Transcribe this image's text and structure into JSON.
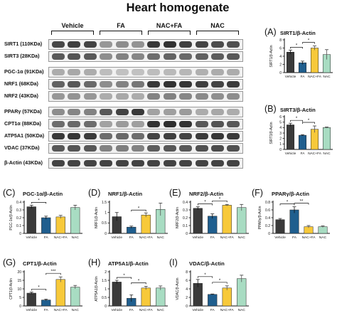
{
  "figure_title": "Heart homogenate",
  "groups": [
    {
      "name": "Vehicle",
      "color": "#3a3a3a"
    },
    {
      "name": "FA",
      "color": "#1f5e8e"
    },
    {
      "name": "NAC+FA",
      "color": "#f7c93a"
    },
    {
      "name": "NAC",
      "color": "#a8dcc2"
    }
  ],
  "blots": [
    {
      "label": "SIRT1 (110KDa)",
      "intensity": [
        0.78,
        0.82,
        0.8,
        0.4,
        0.45,
        0.42,
        0.85,
        0.88,
        0.82,
        0.8,
        0.76,
        0.74
      ]
    },
    {
      "label": "SIRT3 (28KDa)",
      "intensity": [
        0.7,
        0.72,
        0.7,
        0.45,
        0.5,
        0.48,
        0.6,
        0.65,
        0.62,
        0.66,
        0.68,
        0.7
      ]
    },
    {
      "label": "PGC-1α (91KDa)",
      "intensity": [
        0.3,
        0.32,
        0.3,
        0.22,
        0.2,
        0.2,
        0.22,
        0.24,
        0.25,
        0.28,
        0.3,
        0.3
      ]
    },
    {
      "label": "NRF1 (68KDa)",
      "intensity": [
        0.65,
        0.7,
        0.62,
        0.45,
        0.5,
        0.55,
        0.85,
        0.88,
        0.86,
        0.82,
        0.8,
        0.84
      ]
    },
    {
      "label": "NRF2 (43KDa)",
      "intensity": [
        0.4,
        0.42,
        0.4,
        0.3,
        0.32,
        0.3,
        0.5,
        0.5,
        0.48,
        0.46,
        0.44,
        0.45
      ]
    },
    {
      "label": "PPARγ (57KDa)",
      "intensity": [
        0.45,
        0.48,
        0.5,
        0.7,
        0.8,
        0.85,
        0.35,
        0.36,
        0.38,
        0.3,
        0.32,
        0.3
      ]
    },
    {
      "label": "CPT1α (88KDa)",
      "intensity": [
        0.6,
        0.62,
        0.6,
        0.35,
        0.38,
        0.36,
        0.88,
        0.9,
        0.88,
        0.7,
        0.72,
        0.7
      ]
    },
    {
      "label": "ATP5A1 (50KDa)",
      "intensity": [
        0.85,
        0.86,
        0.84,
        0.6,
        0.62,
        0.6,
        0.8,
        0.82,
        0.8,
        0.84,
        0.86,
        0.84
      ]
    },
    {
      "label": "VDAC (37KDa)",
      "intensity": [
        0.7,
        0.72,
        0.7,
        0.5,
        0.52,
        0.5,
        0.68,
        0.7,
        0.7,
        0.74,
        0.76,
        0.74
      ]
    },
    {
      "label": "β-Actin (43KDa)",
      "intensity": [
        0.8,
        0.8,
        0.8,
        0.8,
        0.8,
        0.8,
        0.8,
        0.8,
        0.8,
        0.8,
        0.8,
        0.8
      ]
    }
  ],
  "chart_data": [
    {
      "type": "bar",
      "panel": "(A)",
      "title": "SIRT1/β-Actin",
      "ylabel": "SIRT1/β-Actin",
      "categories": [
        "Vehicle",
        "FA",
        "NAC+FA",
        "NAC"
      ],
      "values": [
        5.0,
        2.4,
        6.0,
        4.4
      ],
      "errors": [
        0.5,
        0.4,
        0.5,
        1.2
      ],
      "ylim": [
        0,
        8
      ],
      "yticks": [
        0,
        2,
        4,
        6,
        8
      ],
      "significance": [
        {
          "from": 0,
          "to": 1,
          "mark": "*"
        },
        {
          "from": 1,
          "to": 2,
          "mark": "*"
        }
      ]
    },
    {
      "type": "bar",
      "panel": "(B)",
      "title": "SIRT3/β-Actin",
      "ylabel": "SIRT3/β-Actin",
      "categories": [
        "Vehicle",
        "FA",
        "NAC+FA",
        "NAC"
      ],
      "values": [
        4.5,
        2.6,
        3.7,
        4.0
      ],
      "errors": [
        0.3,
        0.1,
        0.6,
        0.1
      ],
      "ylim": [
        0,
        6
      ],
      "yticks": [
        0,
        1,
        2,
        3,
        4,
        5,
        6
      ],
      "significance": [
        {
          "from": 0,
          "to": 1,
          "mark": "*"
        },
        {
          "from": 1,
          "to": 2,
          "mark": "*"
        }
      ]
    },
    {
      "type": "bar",
      "panel": "(C)",
      "title": "PGC-1α/β-Actin",
      "ylabel": "PGC-1α/β-Actin",
      "categories": [
        "Vehicle",
        "FA",
        "NAC+FA",
        "NAC"
      ],
      "values": [
        0.34,
        0.2,
        0.21,
        0.33
      ],
      "errors": [
        0.02,
        0.02,
        0.02,
        0.03
      ],
      "ylim": [
        0,
        0.4
      ],
      "yticks": [
        0,
        0.1,
        0.2,
        0.3,
        0.4
      ],
      "significance": [
        {
          "from": 0,
          "to": 1,
          "mark": "*"
        }
      ]
    },
    {
      "type": "bar",
      "panel": "(D)",
      "title": "NRF1/β-Actin",
      "ylabel": "NRF1/β-Actin",
      "categories": [
        "Vehicle",
        "FA",
        "NAC+FA",
        "NAC"
      ],
      "values": [
        0.8,
        0.3,
        0.88,
        1.15
      ],
      "errors": [
        0.2,
        0.05,
        0.1,
        0.3
      ],
      "ylim": [
        0,
        1.5
      ],
      "yticks": [
        0,
        0.5,
        1,
        1.5
      ],
      "significance": [
        {
          "from": 1,
          "to": 2,
          "mark": "*"
        }
      ]
    },
    {
      "type": "bar",
      "panel": "(E)",
      "title": "NRF2/β-Actin",
      "ylabel": "NRF2/β-Actin",
      "categories": [
        "Vehicle",
        "FA",
        "NAC+FA",
        "NAC"
      ],
      "values": [
        0.32,
        0.22,
        0.36,
        0.33
      ],
      "errors": [
        0.02,
        0.03,
        0.01,
        0.04
      ],
      "ylim": [
        0,
        0.4
      ],
      "yticks": [
        0,
        0.1,
        0.2,
        0.3,
        0.4
      ],
      "significance": [
        {
          "from": 0,
          "to": 1,
          "mark": "*"
        },
        {
          "from": 1,
          "to": 2,
          "mark": "*"
        }
      ]
    },
    {
      "type": "bar",
      "panel": "(F)",
      "title": "PPARγ/β-Actin",
      "ylabel": "PPARγ/β-Actin",
      "categories": [
        "Vehicle",
        "FA",
        "NAC+FA",
        "NAC"
      ],
      "values": [
        0.35,
        0.6,
        0.17,
        0.17
      ],
      "errors": [
        0.03,
        0.08,
        0.03,
        0.02
      ],
      "ylim": [
        0,
        0.8
      ],
      "yticks": [
        0,
        0.2,
        0.4,
        0.6,
        0.8
      ],
      "significance": [
        {
          "from": 0,
          "to": 1,
          "mark": "*"
        },
        {
          "from": 1,
          "to": 2,
          "mark": "**"
        }
      ]
    },
    {
      "type": "bar",
      "panel": "(G)",
      "title": "CPT1/β-Actin",
      "ylabel": "CPT1/β-Actin",
      "categories": [
        "Vehicle",
        "FA",
        "NAC+FA",
        "NAC"
      ],
      "values": [
        7.5,
        3.5,
        15.5,
        11.0
      ],
      "errors": [
        0.6,
        0.5,
        1.5,
        1.0
      ],
      "ylim": [
        0,
        20
      ],
      "yticks": [
        0,
        5,
        10,
        15,
        20
      ],
      "significance": [
        {
          "from": 0,
          "to": 1,
          "mark": "*"
        },
        {
          "from": 1,
          "to": 2,
          "mark": "***"
        }
      ]
    },
    {
      "type": "bar",
      "panel": "(H)",
      "title": "ATP5A1/β-Actin",
      "ylabel": "ATP5A1/β-Actin",
      "categories": [
        "Vehicle",
        "FA",
        "NAC+FA",
        "NAC"
      ],
      "values": [
        1.4,
        0.45,
        1.05,
        1.05
      ],
      "errors": [
        0.1,
        0.2,
        0.1,
        0.12
      ],
      "ylim": [
        0,
        2
      ],
      "yticks": [
        0,
        0.5,
        1,
        1.5,
        2
      ],
      "significance": [
        {
          "from": 0,
          "to": 1,
          "mark": "*"
        },
        {
          "from": 1,
          "to": 2,
          "mark": "*"
        }
      ]
    },
    {
      "type": "bar",
      "panel": "(I)",
      "title": "VDAC/β-Actin",
      "ylabel": "VDAC/β-Actin",
      "categories": [
        "Vehicle",
        "FA",
        "NAC+FA",
        "NAC"
      ],
      "values": [
        5.3,
        2.7,
        4.2,
        6.4
      ],
      "errors": [
        0.9,
        0.1,
        0.5,
        0.8
      ],
      "ylim": [
        0,
        8
      ],
      "yticks": [
        0,
        2,
        4,
        6,
        8
      ],
      "significance": [
        {
          "from": 0,
          "to": 1,
          "mark": "*"
        },
        {
          "from": 1,
          "to": 2,
          "mark": "*"
        }
      ]
    }
  ]
}
